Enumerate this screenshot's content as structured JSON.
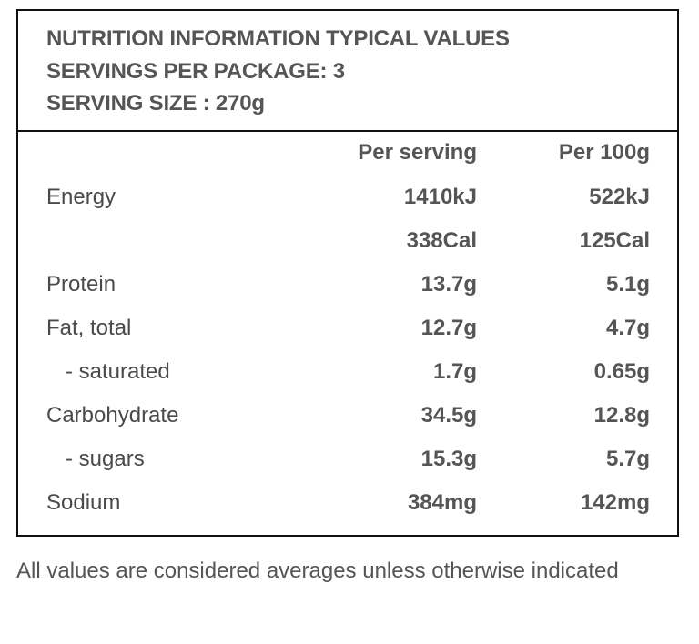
{
  "header": {
    "line1": "NUTRITION INFORMATION TYPICAL VALUES",
    "line2": "SERVINGS PER PACKAGE: 3",
    "line3": "SERVING SIZE : 270g"
  },
  "columns": {
    "per_serving": "Per serving",
    "per_100g": "Per 100g"
  },
  "rows": [
    {
      "label": "Energy",
      "per_serving": "1410kJ",
      "per_100g": "522kJ"
    },
    {
      "label": "",
      "per_serving": "338Cal",
      "per_100g": "125Cal"
    },
    {
      "label": "Protein",
      "per_serving": "13.7g",
      "per_100g": "5.1g"
    },
    {
      "label": "Fat, total",
      "per_serving": "12.7g",
      "per_100g": "4.7g"
    },
    {
      "label": "- saturated",
      "per_serving": "1.7g",
      "per_100g": "0.65g"
    },
    {
      "label": "Carbohydrate",
      "per_serving": "34.5g",
      "per_100g": "12.8g"
    },
    {
      "label": "- sugars",
      "per_serving": "15.3g",
      "per_100g": "5.7g"
    },
    {
      "label": "Sodium",
      "per_serving": "384mg",
      "per_100g": "142mg"
    }
  ],
  "footnote": "All values are considered averages unless otherwise indicated"
}
